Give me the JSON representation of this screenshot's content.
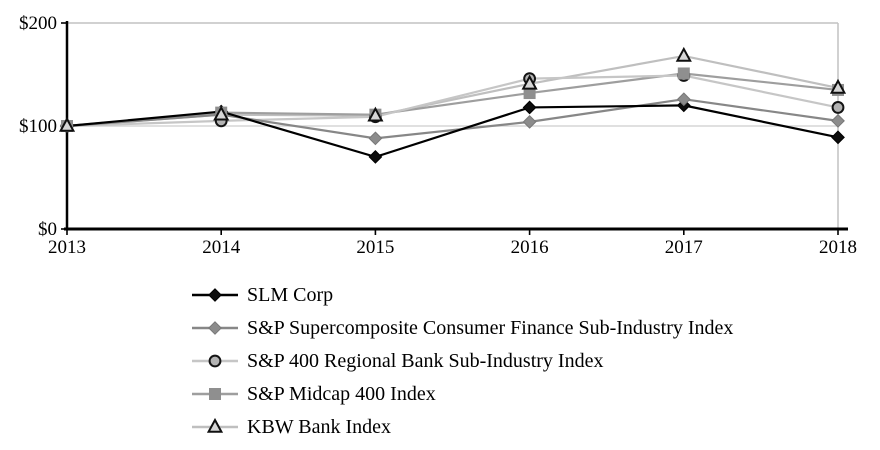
{
  "figure": {
    "background": "#ffffff",
    "text_color": "#000000",
    "axis_color": "#000000",
    "gridline_color": "#c2c2c2",
    "mid_gridline_color": "#d6d6d6"
  },
  "chart_data": {
    "type": "line",
    "title": "",
    "xlabel": "",
    "ylabel": "",
    "categories": [
      "2013",
      "2014",
      "2015",
      "2016",
      "2017",
      "2018"
    ],
    "y_ticks": [
      {
        "label": "$200",
        "value": 200
      },
      {
        "label": "$100",
        "value": 100
      },
      {
        "label": "$0",
        "value": 0
      }
    ],
    "ylim": [
      0,
      200
    ],
    "grid": "horizontal ($100 and $200), right frame border",
    "legend_position": "bottom-left",
    "series": [
      {
        "name": "SLM Corp",
        "values": [
          100,
          114,
          70,
          118,
          120,
          89
        ],
        "line_color": "#000000",
        "marker": {
          "shape": "diamond",
          "fill": "#0d0d0d",
          "stroke": "#000000"
        }
      },
      {
        "name": "S&P Supercomposite Consumer Finance Sub-Industry Index",
        "values": [
          100,
          111,
          88,
          104,
          126,
          105
        ],
        "line_color": "#878787",
        "marker": {
          "shape": "diamond",
          "fill": "#8c8c8c",
          "stroke": "#787878"
        }
      },
      {
        "name": "S&P 400 Regional Bank Sub-Industry Index",
        "values": [
          100,
          105,
          109,
          146,
          149,
          118
        ],
        "line_color": "#c6c6c6",
        "marker": {
          "shape": "circle",
          "fill": "#b3b3b3",
          "stroke": "#141414"
        }
      },
      {
        "name": "S&P Midcap 400 Index",
        "values": [
          100,
          113,
          111,
          132,
          151,
          135
        ],
        "line_color": "#9e9e9e",
        "marker": {
          "shape": "square",
          "fill": "#8f8f8f",
          "stroke": "#8f8f8f"
        }
      },
      {
        "name": "KBW Bank Index",
        "values": [
          100,
          111,
          110,
          141,
          168,
          137
        ],
        "line_color": "#bfbfbf",
        "marker": {
          "shape": "triangle",
          "fill": "#d6d6d6",
          "stroke": "#101010"
        }
      }
    ]
  }
}
